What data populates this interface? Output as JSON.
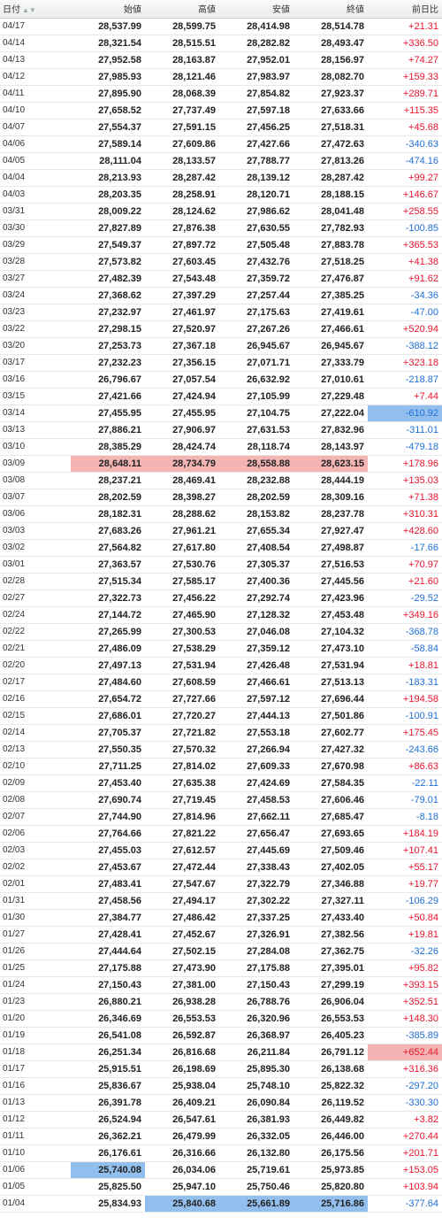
{
  "headers": {
    "date": "日付",
    "open": "始値",
    "high": "高値",
    "low": "安値",
    "close": "終値",
    "change": "前日比"
  },
  "rows": [
    {
      "date": "04/17",
      "open": "28,537.99",
      "high": "28,599.75",
      "low": "28,414.98",
      "close": "28,514.78",
      "change": "+21.31"
    },
    {
      "date": "04/14",
      "open": "28,321.54",
      "high": "28,515.51",
      "low": "28,282.82",
      "close": "28,493.47",
      "change": "+336.50"
    },
    {
      "date": "04/13",
      "open": "27,952.58",
      "high": "28,163.87",
      "low": "27,952.01",
      "close": "28,156.97",
      "change": "+74.27"
    },
    {
      "date": "04/12",
      "open": "27,985.93",
      "high": "28,121.46",
      "low": "27,983.97",
      "close": "28,082.70",
      "change": "+159.33"
    },
    {
      "date": "04/11",
      "open": "27,895.90",
      "high": "28,068.39",
      "low": "27,854.82",
      "close": "27,923.37",
      "change": "+289.71"
    },
    {
      "date": "04/10",
      "open": "27,658.52",
      "high": "27,737.49",
      "low": "27,597.18",
      "close": "27,633.66",
      "change": "+115.35"
    },
    {
      "date": "04/07",
      "open": "27,554.37",
      "high": "27,591.15",
      "low": "27,456.25",
      "close": "27,518.31",
      "change": "+45.68"
    },
    {
      "date": "04/06",
      "open": "27,589.14",
      "high": "27,609.86",
      "low": "27,427.66",
      "close": "27,472.63",
      "change": "-340.63"
    },
    {
      "date": "04/05",
      "open": "28,111.04",
      "high": "28,133.57",
      "low": "27,788.77",
      "close": "27,813.26",
      "change": "-474.16"
    },
    {
      "date": "04/04",
      "open": "28,213.93",
      "high": "28,287.42",
      "low": "28,139.12",
      "close": "28,287.42",
      "change": "+99.27"
    },
    {
      "date": "04/03",
      "open": "28,203.35",
      "high": "28,258.91",
      "low": "28,120.71",
      "close": "28,188.15",
      "change": "+146.67"
    },
    {
      "date": "03/31",
      "open": "28,009.22",
      "high": "28,124.62",
      "low": "27,986.62",
      "close": "28,041.48",
      "change": "+258.55"
    },
    {
      "date": "03/30",
      "open": "27,827.89",
      "high": "27,876.38",
      "low": "27,630.55",
      "close": "27,782.93",
      "change": "-100.85"
    },
    {
      "date": "03/29",
      "open": "27,549.37",
      "high": "27,897.72",
      "low": "27,505.48",
      "close": "27,883.78",
      "change": "+365.53"
    },
    {
      "date": "03/28",
      "open": "27,573.82",
      "high": "27,603.45",
      "low": "27,432.76",
      "close": "27,518.25",
      "change": "+41.38"
    },
    {
      "date": "03/27",
      "open": "27,482.39",
      "high": "27,543.48",
      "low": "27,359.72",
      "close": "27,476.87",
      "change": "+91.62"
    },
    {
      "date": "03/24",
      "open": "27,368.62",
      "high": "27,397.29",
      "low": "27,257.44",
      "close": "27,385.25",
      "change": "-34.36"
    },
    {
      "date": "03/23",
      "open": "27,232.97",
      "high": "27,461.97",
      "low": "27,175.63",
      "close": "27,419.61",
      "change": "-47.00"
    },
    {
      "date": "03/22",
      "open": "27,298.15",
      "high": "27,520.97",
      "low": "27,267.26",
      "close": "27,466.61",
      "change": "+520.94"
    },
    {
      "date": "03/20",
      "open": "27,253.73",
      "high": "27,367.18",
      "low": "26,945.67",
      "close": "26,945.67",
      "change": "-388.12"
    },
    {
      "date": "03/17",
      "open": "27,232.23",
      "high": "27,356.15",
      "low": "27,071.71",
      "close": "27,333.79",
      "change": "+323.18"
    },
    {
      "date": "03/16",
      "open": "26,796.67",
      "high": "27,057.54",
      "low": "26,632.92",
      "close": "27,010.61",
      "change": "-218.87"
    },
    {
      "date": "03/15",
      "open": "27,421.66",
      "high": "27,424.94",
      "low": "27,105.99",
      "close": "27,229.48",
      "change": "+7.44"
    },
    {
      "date": "03/14",
      "open": "27,455.95",
      "high": "27,455.95",
      "low": "27,104.75",
      "close": "27,222.04",
      "change": "-610.92"
    },
    {
      "date": "03/13",
      "open": "27,886.21",
      "high": "27,906.97",
      "low": "27,631.53",
      "close": "27,832.96",
      "change": "-311.01"
    },
    {
      "date": "03/10",
      "open": "28,385.29",
      "high": "28,424.74",
      "low": "28,118.74",
      "close": "28,143.97",
      "change": "-479.18"
    },
    {
      "date": "03/09",
      "open": "28,648.11",
      "high": "28,734.79",
      "low": "28,558.88",
      "close": "28,623.15",
      "change": "+178.96"
    },
    {
      "date": "03/08",
      "open": "28,237.21",
      "high": "28,469.41",
      "low": "28,232.88",
      "close": "28,444.19",
      "change": "+135.03"
    },
    {
      "date": "03/07",
      "open": "28,202.59",
      "high": "28,398.27",
      "low": "28,202.59",
      "close": "28,309.16",
      "change": "+71.38"
    },
    {
      "date": "03/06",
      "open": "28,182.31",
      "high": "28,288.62",
      "low": "28,153.82",
      "close": "28,237.78",
      "change": "+310.31"
    },
    {
      "date": "03/03",
      "open": "27,683.26",
      "high": "27,961.21",
      "low": "27,655.34",
      "close": "27,927.47",
      "change": "+428.60"
    },
    {
      "date": "03/02",
      "open": "27,564.82",
      "high": "27,617.80",
      "low": "27,408.54",
      "close": "27,498.87",
      "change": "-17.66"
    },
    {
      "date": "03/01",
      "open": "27,363.57",
      "high": "27,530.76",
      "low": "27,305.37",
      "close": "27,516.53",
      "change": "+70.97"
    },
    {
      "date": "02/28",
      "open": "27,515.34",
      "high": "27,585.17",
      "low": "27,400.36",
      "close": "27,445.56",
      "change": "+21.60"
    },
    {
      "date": "02/27",
      "open": "27,322.73",
      "high": "27,456.22",
      "low": "27,292.74",
      "close": "27,423.96",
      "change": "-29.52"
    },
    {
      "date": "02/24",
      "open": "27,144.72",
      "high": "27,465.90",
      "low": "27,128.32",
      "close": "27,453.48",
      "change": "+349.16"
    },
    {
      "date": "02/22",
      "open": "27,265.99",
      "high": "27,300.53",
      "low": "27,046.08",
      "close": "27,104.32",
      "change": "-368.78"
    },
    {
      "date": "02/21",
      "open": "27,486.09",
      "high": "27,538.29",
      "low": "27,359.12",
      "close": "27,473.10",
      "change": "-58.84"
    },
    {
      "date": "02/20",
      "open": "27,497.13",
      "high": "27,531.94",
      "low": "27,426.48",
      "close": "27,531.94",
      "change": "+18.81"
    },
    {
      "date": "02/17",
      "open": "27,484.60",
      "high": "27,608.59",
      "low": "27,466.61",
      "close": "27,513.13",
      "change": "-183.31"
    },
    {
      "date": "02/16",
      "open": "27,654.72",
      "high": "27,727.66",
      "low": "27,597.12",
      "close": "27,696.44",
      "change": "+194.58"
    },
    {
      "date": "02/15",
      "open": "27,686.01",
      "high": "27,720.27",
      "low": "27,444.13",
      "close": "27,501.86",
      "change": "-100.91"
    },
    {
      "date": "02/14",
      "open": "27,705.37",
      "high": "27,721.82",
      "low": "27,553.18",
      "close": "27,602.77",
      "change": "+175.45"
    },
    {
      "date": "02/13",
      "open": "27,550.35",
      "high": "27,570.32",
      "low": "27,266.94",
      "close": "27,427.32",
      "change": "-243.66"
    },
    {
      "date": "02/10",
      "open": "27,711.25",
      "high": "27,814.02",
      "low": "27,609.33",
      "close": "27,670.98",
      "change": "+86.63"
    },
    {
      "date": "02/09",
      "open": "27,453.40",
      "high": "27,635.38",
      "low": "27,424.69",
      "close": "27,584.35",
      "change": "-22.11"
    },
    {
      "date": "02/08",
      "open": "27,690.74",
      "high": "27,719.45",
      "low": "27,458.53",
      "close": "27,606.46",
      "change": "-79.01"
    },
    {
      "date": "02/07",
      "open": "27,744.90",
      "high": "27,814.96",
      "low": "27,662.11",
      "close": "27,685.47",
      "change": "-8.18"
    },
    {
      "date": "02/06",
      "open": "27,764.66",
      "high": "27,821.22",
      "low": "27,656.47",
      "close": "27,693.65",
      "change": "+184.19"
    },
    {
      "date": "02/03",
      "open": "27,455.03",
      "high": "27,612.57",
      "low": "27,445.69",
      "close": "27,509.46",
      "change": "+107.41"
    },
    {
      "date": "02/02",
      "open": "27,453.67",
      "high": "27,472.44",
      "low": "27,338.43",
      "close": "27,402.05",
      "change": "+55.17"
    },
    {
      "date": "02/01",
      "open": "27,483.41",
      "high": "27,547.67",
      "low": "27,322.79",
      "close": "27,346.88",
      "change": "+19.77"
    },
    {
      "date": "01/31",
      "open": "27,458.56",
      "high": "27,494.17",
      "low": "27,302.22",
      "close": "27,327.11",
      "change": "-106.29"
    },
    {
      "date": "01/30",
      "open": "27,384.77",
      "high": "27,486.42",
      "low": "27,337.25",
      "close": "27,433.40",
      "change": "+50.84"
    },
    {
      "date": "01/27",
      "open": "27,428.41",
      "high": "27,452.67",
      "low": "27,326.91",
      "close": "27,382.56",
      "change": "+19.81"
    },
    {
      "date": "01/26",
      "open": "27,444.64",
      "high": "27,502.15",
      "low": "27,284.08",
      "close": "27,362.75",
      "change": "-32.26"
    },
    {
      "date": "01/25",
      "open": "27,175.88",
      "high": "27,473.90",
      "low": "27,175.88",
      "close": "27,395.01",
      "change": "+95.82"
    },
    {
      "date": "01/24",
      "open": "27,150.43",
      "high": "27,381.00",
      "low": "27,150.43",
      "close": "27,299.19",
      "change": "+393.15"
    },
    {
      "date": "01/23",
      "open": "26,880.21",
      "high": "26,938.28",
      "low": "26,788.76",
      "close": "26,906.04",
      "change": "+352.51"
    },
    {
      "date": "01/20",
      "open": "26,346.69",
      "high": "26,553.53",
      "low": "26,320.96",
      "close": "26,553.53",
      "change": "+148.30"
    },
    {
      "date": "01/19",
      "open": "26,541.08",
      "high": "26,592.87",
      "low": "26,368.97",
      "close": "26,405.23",
      "change": "-385.89"
    },
    {
      "date": "01/18",
      "open": "26,251.34",
      "high": "26,816.68",
      "low": "26,211.84",
      "close": "26,791.12",
      "change": "+652.44"
    },
    {
      "date": "01/17",
      "open": "25,915.51",
      "high": "26,198.69",
      "low": "25,895.30",
      "close": "26,138.68",
      "change": "+316.36"
    },
    {
      "date": "01/16",
      "open": "25,836.67",
      "high": "25,938.04",
      "low": "25,748.10",
      "close": "25,822.32",
      "change": "-297.20"
    },
    {
      "date": "01/13",
      "open": "26,391.78",
      "high": "26,409.21",
      "low": "26,090.84",
      "close": "26,119.52",
      "change": "-330.30"
    },
    {
      "date": "01/12",
      "open": "26,524.94",
      "high": "26,547.61",
      "low": "26,381.93",
      "close": "26,449.82",
      "change": "+3.82"
    },
    {
      "date": "01/11",
      "open": "26,362.21",
      "high": "26,479.99",
      "low": "26,332.05",
      "close": "26,446.00",
      "change": "+270.44"
    },
    {
      "date": "01/10",
      "open": "26,176.61",
      "high": "26,316.66",
      "low": "26,132.80",
      "close": "26,175.56",
      "change": "+201.71"
    },
    {
      "date": "01/06",
      "open": "25,740.08",
      "high": "26,034.06",
      "low": "25,719.61",
      "close": "25,973.85",
      "change": "+153.05"
    },
    {
      "date": "01/05",
      "open": "25,825.50",
      "high": "25,947.10",
      "low": "25,750.46",
      "close": "25,820.80",
      "change": "+103.94"
    },
    {
      "date": "01/04",
      "open": "25,834.93",
      "high": "25,840.68",
      "low": "25,661.89",
      "close": "25,716.86",
      "change": "-377.64"
    }
  ],
  "highlights": {
    "red_row": "03/09",
    "red_cells": [
      [
        "01/18",
        "change"
      ]
    ],
    "blue_cells": [
      [
        "03/14",
        "change"
      ],
      [
        "01/06",
        "open"
      ],
      [
        "01/04",
        "high"
      ],
      [
        "01/04",
        "low"
      ],
      [
        "01/04",
        "close"
      ]
    ],
    "colors": {
      "positive": "#e8142c",
      "negative": "#1e6fd6",
      "red_fill": "#f4b4b4",
      "blue_fill": "#93bfee"
    }
  },
  "icons": {
    "sort": "sort-arrows-icon"
  }
}
